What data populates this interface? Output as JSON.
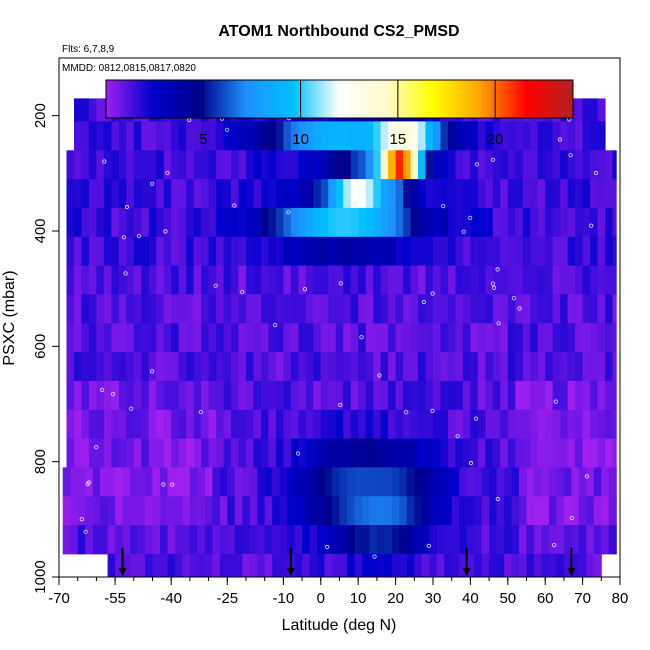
{
  "chart_data": {
    "type": "heatmap",
    "title": "ATOM1 Northbound CS2_PMSD",
    "notes": {
      "flights": "Flts: 6,7,8,9",
      "dates": "MMDD: 0812,0815,0817,0820"
    },
    "xlabel": "Latitude (deg N)",
    "ylabel": "PSXC (mbar)",
    "xlim": [
      -70,
      80
    ],
    "ylim": [
      1000,
      100
    ],
    "x_ticks": [
      -70,
      -55,
      -40,
      -25,
      -10,
      0,
      10,
      20,
      30,
      40,
      50,
      60,
      70,
      80
    ],
    "x_tick_labels": [
      "-70",
      "-55",
      "-40",
      "-25",
      "-10",
      "0",
      "10",
      "20",
      "30",
      "40",
      "50",
      "60",
      "70",
      "80"
    ],
    "x_minor_step": 5,
    "y_ticks": [
      200,
      400,
      600,
      800,
      1000
    ],
    "y_tick_labels": [
      "200",
      "400",
      "600",
      "800",
      "1000"
    ],
    "colorbar": {
      "min": 0,
      "max": 24,
      "ticks": [
        5,
        10,
        15,
        20
      ],
      "tick_labels": [
        "5",
        "10",
        "15",
        "20"
      ],
      "colors": [
        "#a020f0",
        "#0000cd",
        "#00008b",
        "#1e90ff",
        "#00bfff",
        "#ffffff",
        "#fffacd",
        "#ffff00",
        "#ffa500",
        "#ff0000",
        "#b22222"
      ]
    },
    "lat_range": [
      -68,
      79
    ],
    "pressure_top": 170,
    "lat_bin_deg": 2,
    "pressure_levels": [
      185,
      235,
      285,
      335,
      385,
      435,
      485,
      535,
      585,
      635,
      685,
      735,
      785,
      835,
      885,
      935,
      985
    ],
    "features": [
      {
        "lat": 21,
        "pres": 235,
        "value": 16,
        "dlat": 7,
        "dp": 25
      },
      {
        "lat": 5,
        "pres": 235,
        "value": 9,
        "dlat": 14,
        "dp": 25
      },
      {
        "lat": 21,
        "pres": 285,
        "value": 21.5,
        "dlat": 4,
        "dp": 25
      },
      {
        "lat": 10,
        "pres": 335,
        "value": 13,
        "dlat": 6,
        "dp": 30
      },
      {
        "lat": 6,
        "pres": 385,
        "value": 10,
        "dlat": 14,
        "dp": 30
      },
      {
        "lat": 15,
        "pres": 885,
        "value": 8,
        "dlat": 9,
        "dp": 50
      },
      {
        "lat": 12,
        "pres": 835,
        "value": 6,
        "dlat": 12,
        "dp": 50
      }
    ],
    "background_levels": [
      {
        "value": 1.2
      },
      {
        "value": 1.5
      }
    ],
    "flight_marker_lats": [
      -53,
      -8,
      39,
      67
    ]
  }
}
